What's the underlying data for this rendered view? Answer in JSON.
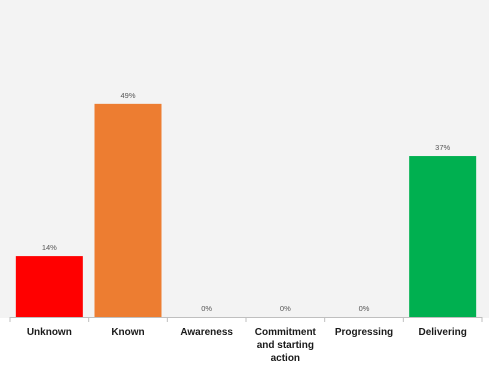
{
  "chart_data": {
    "type": "bar",
    "categories": [
      "Unknown",
      "Known",
      "Awareness",
      "Commitment and starting action",
      "Progressing",
      "Delivering"
    ],
    "category_label_lines": [
      [
        "Unknown"
      ],
      [
        "Known"
      ],
      [
        "Awareness"
      ],
      [
        "Commitment",
        "and starting",
        "action"
      ],
      [
        "Progressing"
      ],
      [
        "Delivering"
      ]
    ],
    "values": [
      14,
      49,
      0,
      0,
      0,
      37
    ],
    "data_labels": [
      "14%",
      "49%",
      "0%",
      "0%",
      "0%",
      "37%"
    ],
    "colors": [
      "#ff0000",
      "#ed7d31",
      "#a5a5a5",
      "#a5a5a5",
      "#a5a5a5",
      "#00b050"
    ],
    "ylim": [
      0,
      60
    ],
    "unit": "%",
    "grid": false,
    "title": "",
    "xlabel": "",
    "ylabel": ""
  }
}
